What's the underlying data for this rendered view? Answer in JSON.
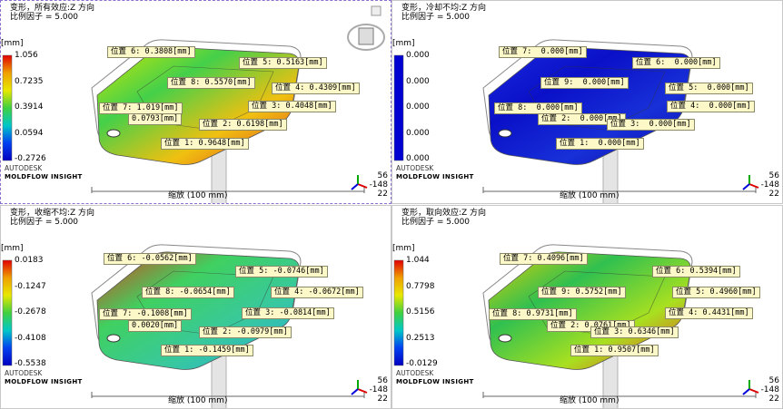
{
  "panels": [
    {
      "title": "变形，所有效应:Z 方向",
      "scale_factor": "比例因子 = 5.000",
      "unit": "[mm]",
      "legend": [
        "1.056",
        "0.7235",
        "0.3914",
        "0.0594",
        "-0.2726"
      ],
      "labels": [
        "位置 6: 0.3808[mm]",
        "位置 5: 0.5163[mm]",
        "位置 8: 0.5570[mm]",
        "位置 4: 0.4309[mm]",
        "位置 7: 1.019[mm]",
        "位置 3: 0.4048[mm]",
        "0.0793[mm]",
        "位置 2: 0.6198[mm]",
        "位置 1: 0.9648[mm]"
      ],
      "brand": "AUTODESK",
      "product": "MOLDFLOW INSIGHT",
      "scale_bar": "缩放 (100 mm)",
      "coords": [
        "56",
        "-148",
        "22"
      ]
    },
    {
      "title": "变形，冷却不均:Z 方向",
      "scale_factor": "比例因子 = 5.000",
      "unit": "[mm]",
      "legend": [
        "0.000",
        "0.000",
        "0.000",
        "0.000",
        "0.000"
      ],
      "labels": [
        "位置 7:  0.000[mm]",
        "位置 6:  0.000[mm]",
        "位置 9:  0.000[mm]",
        "位置 5:  0.000[mm]",
        "位置 8:  0.000[mm]",
        "位置 4:  0.000[mm]",
        "位置 2:  0.000[mm]",
        "位置 3:  0.000[mm]",
        "位置 1:  0.000[mm]"
      ],
      "brand": "AUTODESK",
      "product": "MOLDFLOW INSIGHT",
      "scale_bar": "缩放 (100 mm)",
      "coords": [
        "56",
        "-148",
        "22"
      ]
    },
    {
      "title": "变形，收缩不均:Z 方向",
      "scale_factor": "比例因子 = 5.000",
      "unit": "[mm]",
      "legend": [
        "0.0183",
        "-0.1247",
        "-0.2678",
        "-0.4108",
        "-0.5538"
      ],
      "labels": [
        "位置 6: -0.0562[mm]",
        "位置 5: -0.0746[mm]",
        "位置 8: -0.0654[mm]",
        "位置 4: -0.0672[mm]",
        "位置 7: -0.1008[mm]",
        "位置 3: -0.0814[mm]",
        "0.0020[mm]",
        "位置 2: -0.0979[mm]",
        "位置 1: -0.1459[mm]"
      ],
      "brand": "AUTODESK",
      "product": "MOLDFLOW INSIGHT",
      "scale_bar": "缩放 (100 mm)",
      "coords": [
        "56",
        "-148",
        "22"
      ]
    },
    {
      "title": "变形，取向效应:Z 方向",
      "scale_factor": "比例因子 = 5.000",
      "unit": "[mm]",
      "legend": [
        "1.044",
        "0.7798",
        "0.5156",
        "0.2513",
        "-0.0129"
      ],
      "labels": [
        "位置 7: 0.4096[mm]",
        "位置 6: 0.5394[mm]",
        "位置 9: 0.5752[mm]",
        "位置 5: 0.4960[mm]",
        "位置 8: 0.9731[mm]",
        "位置 4: 0.4431[mm]",
        "位置 2: 0.0761[mm]",
        "位置 3: 0.6346[mm]",
        "位置 1: 0.9507[mm]"
      ],
      "brand": "AUTODESK",
      "product": "MOLDFLOW INSIGHT",
      "scale_bar": "缩放 (100 mm)",
      "coords": [
        "56",
        "-148",
        "22"
      ]
    }
  ]
}
